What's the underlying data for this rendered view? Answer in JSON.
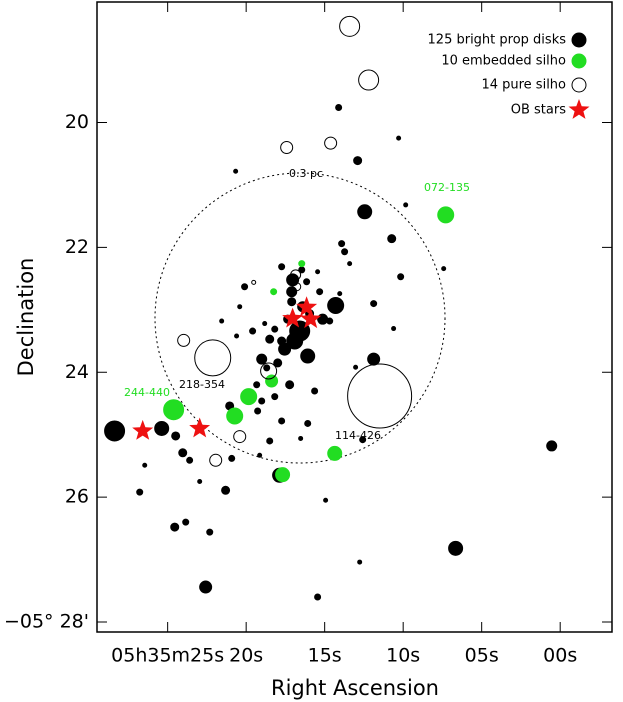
{
  "chart_data": {
    "type": "scatter",
    "xlabel": "Right Ascension",
    "ylabel": "Declination",
    "xlim": [
      29.5,
      -3.3
    ],
    "ylim": [
      28.16,
      18.07
    ],
    "xticks": [
      {
        "value": 25,
        "label": "05h35m25s"
      },
      {
        "value": 20,
        "label": "20s"
      },
      {
        "value": 15,
        "label": "15s"
      },
      {
        "value": 10,
        "label": "10s"
      },
      {
        "value": 5,
        "label": "05s"
      },
      {
        "value": 0,
        "label": "00s"
      }
    ],
    "yticks": [
      20,
      22,
      24,
      26,
      {
        "value": 28,
        "label": "−05° 28'"
      }
    ],
    "legend": "upper right",
    "series": [
      {
        "name": "125 bright prop disks",
        "marker": "filled",
        "color": "#000000",
        "x": [
          28.38,
          25.38,
          24.49,
          24.04,
          23.6,
          24.55,
          26.46,
          26.78,
          24.55,
          23.85,
          22.32,
          22.58,
          21.31,
          22.96,
          21.05,
          19.33,
          20.92,
          19.14,
          19.01,
          17.87,
          16.53,
          18.5,
          20.1,
          20.41,
          20.61,
          21.56,
          19.59,
          18.82,
          18.5,
          18.18,
          17.74,
          17.36,
          17.1,
          17.04,
          17.1,
          16.4,
          15.96,
          15.13,
          14.68,
          14.24,
          14.04,
          17.74,
          16.46,
          16.15,
          15.45,
          15.32,
          13.73,
          13.41,
          13.92,
          14.3,
          16.59,
          16.08,
          17.55,
          16.91,
          19.01,
          17.99,
          18.69,
          17.23,
          18.18,
          19.27,
          17.74,
          16.08,
          15.64,
          13.03,
          12.45,
          10.73,
          10.16,
          11.88,
          11.88,
          10.61,
          12.58,
          14.11,
          12.9,
          10.29,
          9.84,
          15.45,
          0.54,
          6.66,
          12.77,
          14.94,
          7.42,
          20.67
        ],
        "y": [
          24.94,
          24.9,
          25.02,
          25.29,
          25.41,
          24.7,
          25.49,
          25.92,
          26.48,
          26.4,
          26.56,
          27.44,
          25.89,
          25.75,
          24.54,
          24.2,
          25.38,
          25.33,
          24.46,
          25.65,
          25.06,
          25.1,
          22.63,
          22.95,
          23.42,
          23.18,
          23.34,
          23.22,
          23.47,
          23.31,
          23.5,
          23.15,
          22.87,
          22.52,
          22.71,
          22.95,
          23.06,
          23.15,
          23.18,
          22.95,
          22.74,
          22.31,
          22.36,
          22.55,
          22.39,
          22.71,
          22.07,
          22.26,
          21.94,
          22.93,
          23.34,
          23.74,
          23.63,
          23.5,
          23.79,
          23.85,
          23.93,
          24.2,
          24.39,
          24.62,
          24.78,
          24.82,
          24.3,
          23.92,
          21.43,
          21.86,
          22.47,
          22.9,
          23.79,
          23.3,
          25.08,
          19.76,
          20.61,
          20.25,
          21.32,
          27.6,
          25.18,
          26.82,
          27.04,
          26.05,
          22.34,
          20.78
        ],
        "sizes": [
          10,
          7,
          4,
          4,
          3,
          3,
          2,
          3,
          4,
          3,
          3,
          6,
          4,
          2,
          4,
          3,
          3,
          2,
          3,
          7,
          2,
          3,
          3,
          2,
          2,
          2,
          3,
          2,
          4,
          3,
          4,
          4,
          4,
          6,
          5,
          5,
          4,
          5,
          3,
          3,
          2,
          3,
          3,
          3,
          2,
          3,
          3,
          2,
          3,
          8,
          10,
          7,
          6,
          8,
          5,
          4,
          3,
          4,
          3,
          3,
          3,
          3,
          3,
          2,
          7,
          4,
          3,
          3,
          6,
          2,
          3,
          3,
          4,
          2,
          2,
          3,
          5,
          7,
          2,
          2,
          2,
          2
        ]
      },
      {
        "name": "10 embedded silho",
        "marker": "filled",
        "color": "#22dd22",
        "x": [
          24.62,
          19.84,
          20.73,
          18.38,
          14.36,
          17.68,
          7.29,
          18.25,
          16.46
        ],
        "y": [
          24.6,
          24.39,
          24.7,
          24.14,
          25.3,
          25.64,
          21.48,
          22.71,
          22.26
        ],
        "sizes": [
          10,
          8,
          8,
          6,
          7,
          7,
          8,
          3,
          3
        ]
      },
      {
        "name": "14 pure silho",
        "marker": "open",
        "color": "#000000",
        "x": [
          13.41,
          12.2,
          14.62,
          17.42,
          22.13,
          11.5,
          18.57,
          20.41,
          21.94,
          23.98,
          16.85,
          16.78,
          19.52
        ],
        "y": [
          18.46,
          19.32,
          20.33,
          20.4,
          23.77,
          24.38,
          23.98,
          25.03,
          25.41,
          23.49,
          22.44,
          22.63,
          22.56
        ],
        "sizes": [
          10,
          10,
          6,
          6,
          18,
          32,
          8,
          6,
          6,
          6,
          5,
          4,
          2
        ]
      },
      {
        "name": "OB stars",
        "marker": "star",
        "color": "#ee1111",
        "x": [
          26.59,
          22.96,
          17.04,
          16.15,
          15.89
        ],
        "y": [
          24.94,
          24.9,
          23.14,
          22.96,
          23.15
        ]
      }
    ],
    "annotations": [
      {
        "text": "0.3 pc",
        "color": "#000000"
      },
      {
        "text": "072-135",
        "color": "#22dd22"
      },
      {
        "text": "244-440",
        "color": "#22dd22"
      },
      {
        "text": "218-354",
        "color": "#000000"
      },
      {
        "text": "114-426",
        "color": "#000000"
      }
    ]
  }
}
